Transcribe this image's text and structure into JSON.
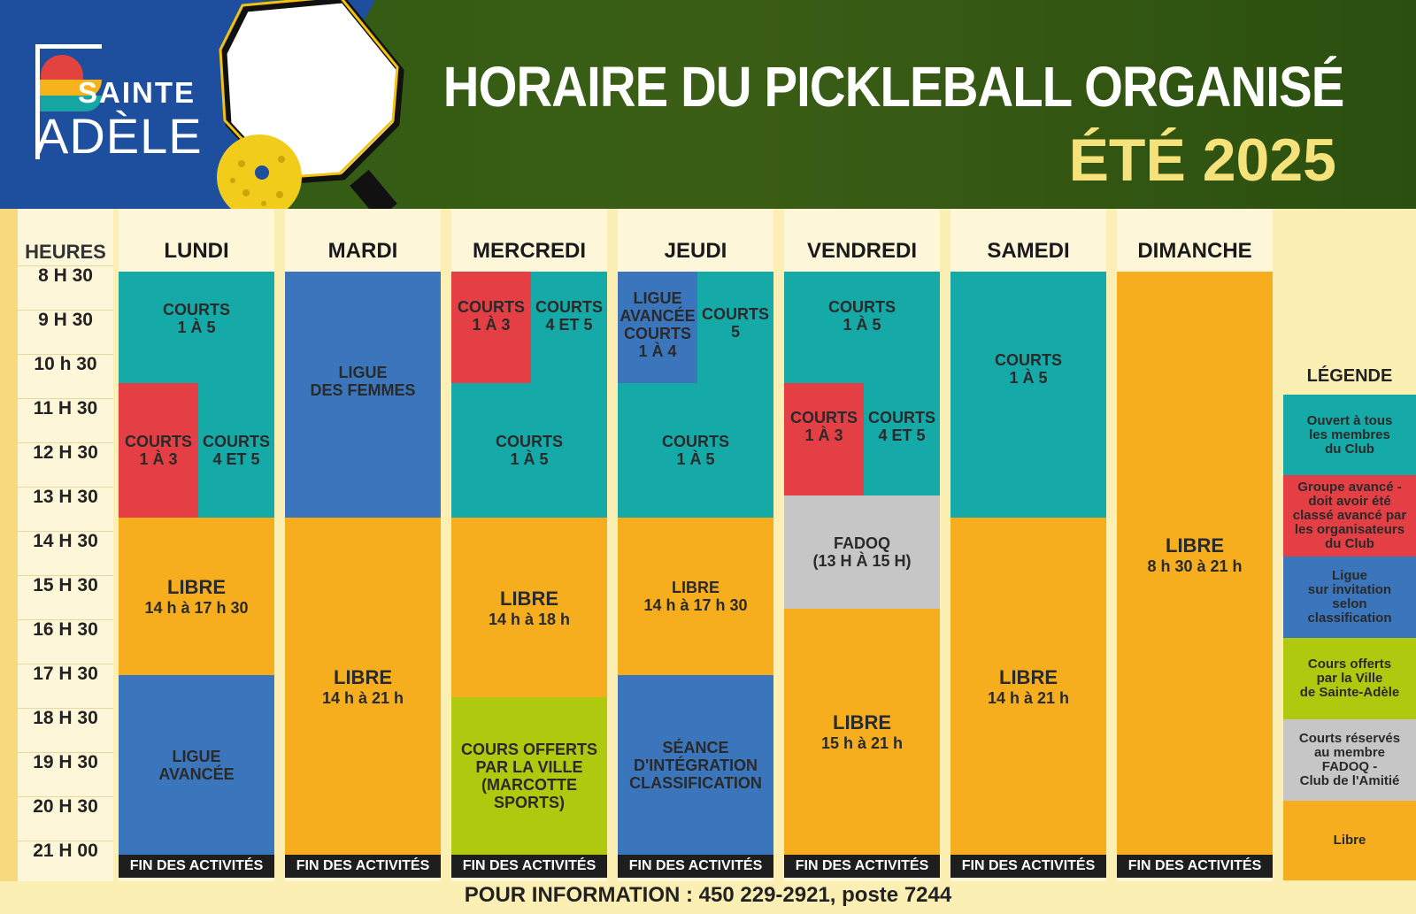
{
  "header": {
    "title": "HORAIRE DU PICKLEBALL ORGANISÉ",
    "subtitle": "ÉTÉ 2025",
    "logo_line1": "SAINTE",
    "logo_line2": "ADÈLE"
  },
  "hours_header": "HEURES",
  "hours": [
    "8 H 30",
    "9 H 30",
    "10 h 30",
    "11 H 30",
    "12 H 30",
    "13 H 30",
    "14 H 30",
    "15 H 30",
    "16 H 30",
    "17 H 30",
    "18 H 30",
    "19 H 30",
    "20 H 30",
    "21 H 00"
  ],
  "days": [
    "LUNDI",
    "MARDI",
    "MERCREDI",
    "JEUDI",
    "VENDREDI",
    "SAMEDI",
    "DIMANCHE"
  ],
  "blocks": {
    "lundi": {
      "b1": {
        "l1": "COURTS",
        "l2": "1 À 5"
      },
      "b2": {
        "l1": "COURTS",
        "l2": "1 À 3"
      },
      "b3": {
        "l1": "COURTS",
        "l2": "4 ET 5"
      },
      "b4": {
        "l1": "LIBRE",
        "l2": "14 h à 17 h 30"
      },
      "b5": {
        "l1": "LIGUE",
        "l2": "AVANCÉE"
      }
    },
    "mardi": {
      "b1": {
        "l1": "LIGUE",
        "l2": "DES FEMMES"
      },
      "b2": {
        "l1": "LIBRE",
        "l2": "14 h à 21 h"
      }
    },
    "mercredi": {
      "b1": {
        "l1": "COURTS",
        "l2": "1 À 3"
      },
      "b2": {
        "l1": "COURTS",
        "l2": "4 ET 5"
      },
      "b3": {
        "l1": "COURTS",
        "l2": "1 À 5"
      },
      "b4": {
        "l1": "LIBRE",
        "l2": "14 h à 18 h"
      },
      "b5": {
        "l1": "COURS OFFERTS",
        "l2": "PAR LA VILLE",
        "l3": "(MARCOTTE",
        "l4": "SPORTS)"
      }
    },
    "jeudi": {
      "b1": {
        "l1": "LIGUE",
        "l2": "AVANCÉE",
        "l3": "COURTS",
        "l4": "1 À 4"
      },
      "b2": {
        "l1": "COURTS",
        "l2": "5"
      },
      "b3": {
        "l1": "COURTS",
        "l2": "1 À 5"
      },
      "b4": {
        "l1": "LIBRE",
        "l2": "14 h à 17 h 30"
      },
      "b5": {
        "l1": "SÉANCE",
        "l2": "D'INTÉGRATION",
        "l3": "CLASSIFICATION"
      }
    },
    "vendredi": {
      "b1": {
        "l1": "COURTS",
        "l2": "1 À 5"
      },
      "b2": {
        "l1": "COURTS",
        "l2": "1 À 3"
      },
      "b3": {
        "l1": "COURTS",
        "l2": "4 ET 5"
      },
      "b4": {
        "l1": "FADOQ",
        "l2": "(13 H À 15 H)"
      },
      "b5": {
        "l1": "LIBRE",
        "l2": "15 h à 21 h"
      }
    },
    "samedi": {
      "b1": {
        "l1": "COURTS",
        "l2": "1 À 5"
      },
      "b2": {
        "l1": "LIBRE",
        "l2": "14 h à 21 h"
      }
    },
    "dimanche": {
      "b1": {
        "l1": "LIBRE",
        "l2": "8 h 30 à 21 h"
      }
    }
  },
  "fin_label": "FIN DES ACTIVITÉS",
  "legend": {
    "title": "LÉGENDE",
    "items": [
      {
        "l1": "Ouvert à tous",
        "l2": "les membres",
        "l3": "du Club"
      },
      {
        "l1": "Groupe avancé -",
        "l2": "doit avoir été",
        "l3": "classé avancé par",
        "l4": "les organisateurs",
        "l5": "du Club"
      },
      {
        "l1": "Ligue",
        "l2": "sur invitation",
        "l3": "selon",
        "l4": "classification"
      },
      {
        "l1": "Cours offerts",
        "l2": "par la Ville",
        "l3": "de Sainte-Adèle"
      },
      {
        "l1": "Courts réservés",
        "l2": "au membre",
        "l3": "FADOQ -",
        "l4": "Club de l'Amitié"
      },
      {
        "l1": "Libre"
      }
    ]
  },
  "footer": "POUR INFORMATION : 450 229-2921, poste 7244",
  "colors": {
    "teal": "#15a9a7",
    "red": "#e33f44",
    "blue": "#3b76bd",
    "orange": "#f6ae1f",
    "green": "#afc90e",
    "grey": "#c6c6c6",
    "header_green": "#3b5e16",
    "header_blue": "#1d4f9e",
    "subtitle_yellow": "#f6e27a"
  }
}
